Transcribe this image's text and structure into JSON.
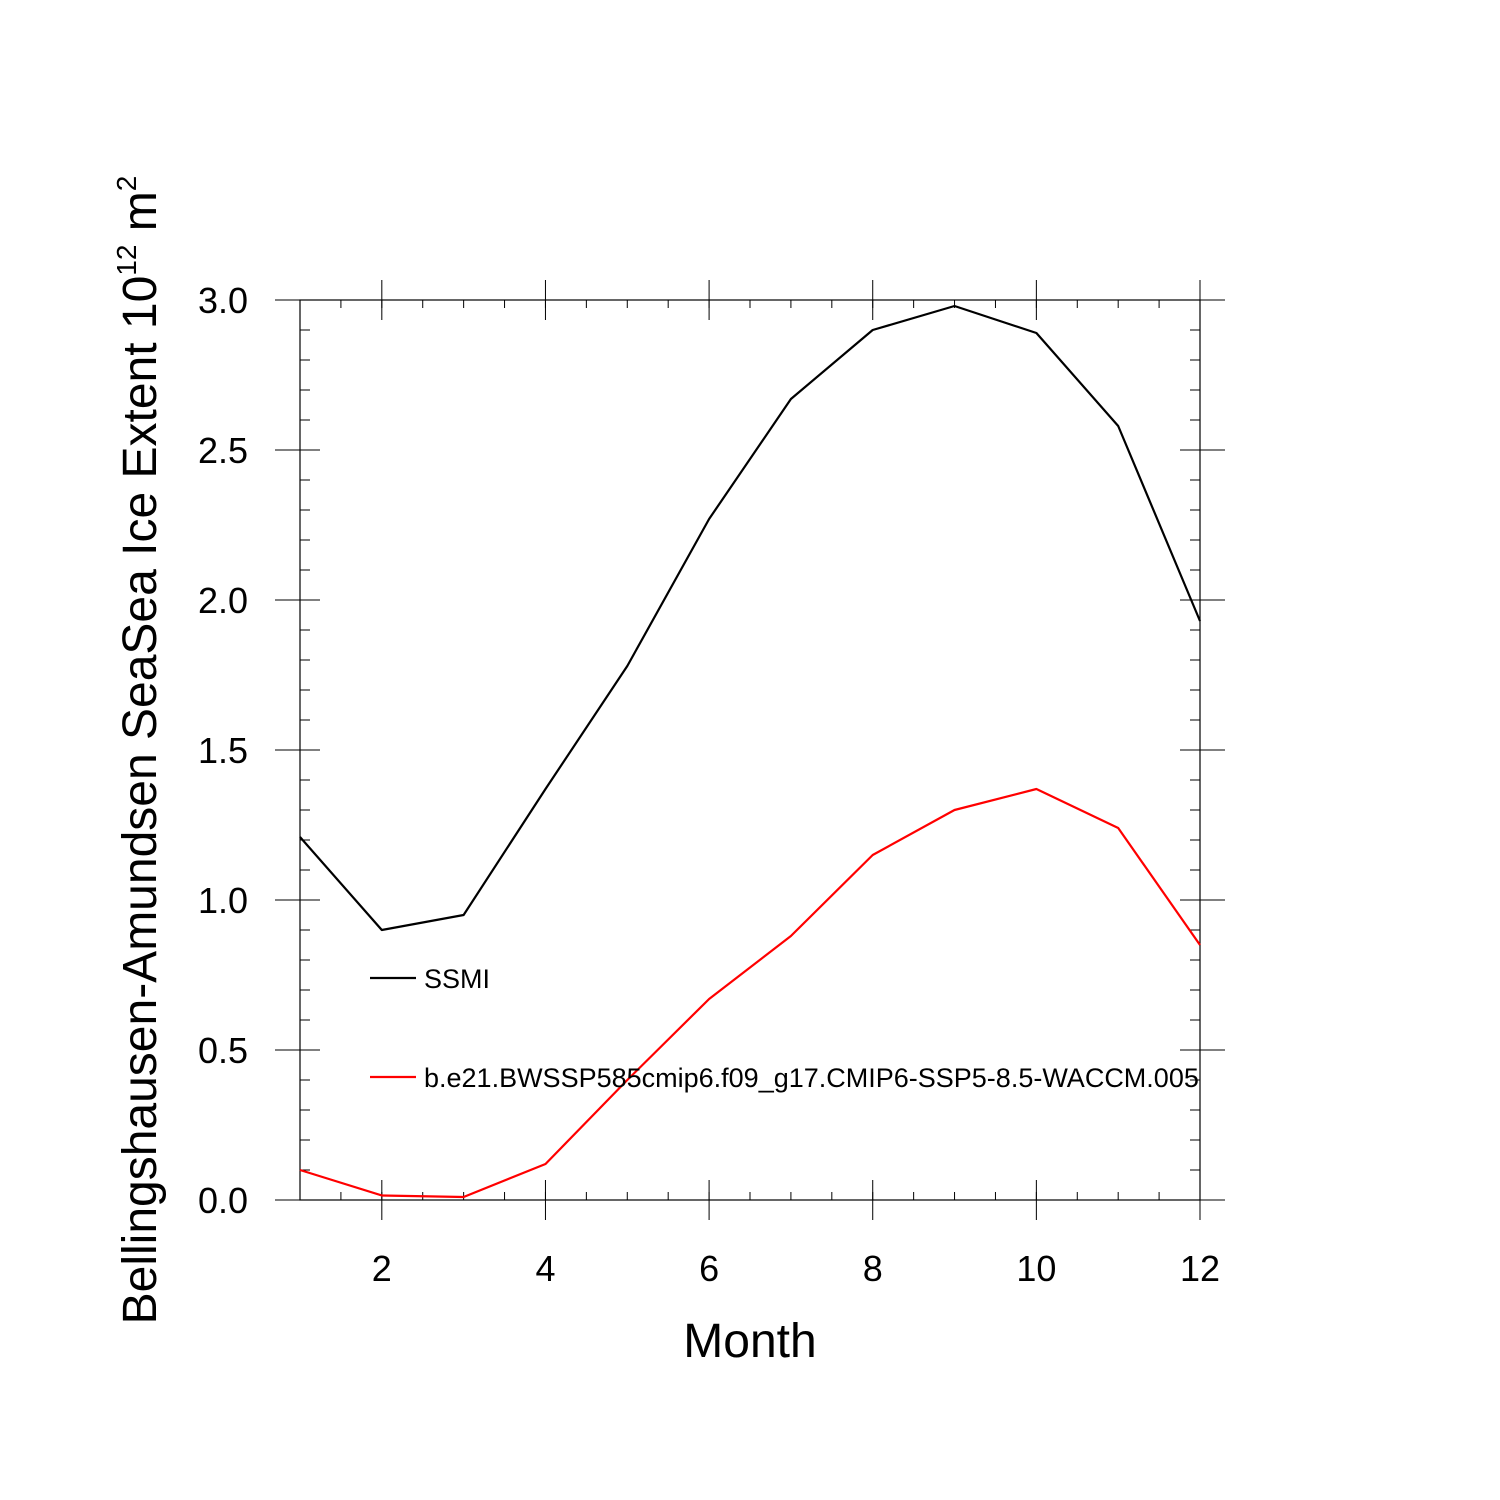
{
  "chart_data": {
    "type": "line",
    "xlabel": "Month",
    "ylabel": {
      "main": "Bellingshausen-Amundsen SeaSea Ice Extent 10",
      "exponent": "12",
      "unit_base": " m",
      "unit_exponent": "2"
    },
    "xlim": [
      1,
      12
    ],
    "ylim": [
      0,
      3
    ],
    "x_ticks": [
      2,
      4,
      6,
      8,
      10,
      12
    ],
    "x_tick_labels": [
      "2",
      "4",
      "6",
      "8",
      "10",
      "12"
    ],
    "y_ticks": [
      0,
      0.5,
      1,
      1.5,
      2,
      2.5,
      3
    ],
    "y_tick_labels": [
      "0.0",
      "0.5",
      "1.0",
      "1.5",
      "2.0",
      "2.5",
      "3.0"
    ],
    "grid": false,
    "legend_position": "inside-left",
    "x": [
      1,
      2,
      3,
      4,
      5,
      6,
      7,
      8,
      9,
      10,
      11,
      12
    ],
    "series": [
      {
        "name": "SSMI",
        "color": "#000000",
        "values": [
          1.21,
          0.9,
          0.95,
          1.37,
          1.78,
          2.27,
          2.67,
          2.9,
          2.98,
          2.89,
          2.58,
          1.93
        ]
      },
      {
        "name": "b.e21.BWSSP585cmip6.f09_g17.CMIP6-SSP5-8.5-WACCM.005",
        "color": "#ff0000",
        "values": [
          0.1,
          0.015,
          0.01,
          0.12,
          0.4,
          0.67,
          0.88,
          1.15,
          1.3,
          1.37,
          1.24,
          0.85
        ]
      }
    ]
  }
}
